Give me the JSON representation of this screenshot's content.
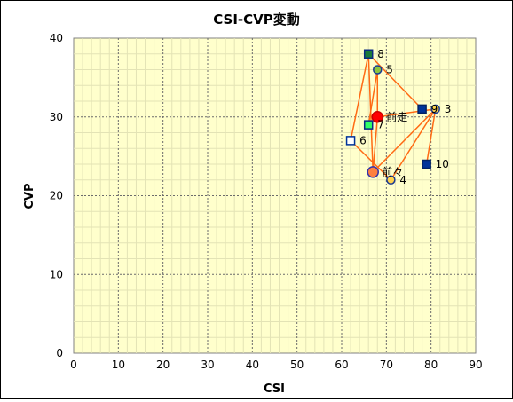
{
  "chart_data": {
    "type": "scatter",
    "title": "CSI-CVP変動",
    "xlabel": "CSI",
    "ylabel": "CVP",
    "xlim": [
      0,
      90
    ],
    "ylim": [
      0,
      40
    ],
    "x_ticks": [
      "0",
      "10",
      "20",
      "30",
      "40",
      "50",
      "60",
      "70",
      "80",
      "90"
    ],
    "y_ticks": [
      "0",
      "10",
      "20",
      "30",
      "40"
    ],
    "grid": true,
    "plot_background": "#ffffcc",
    "line_color": "#ff6a13",
    "points": [
      {
        "label": "8",
        "x": 66,
        "y": 38,
        "marker": "square",
        "fill": "#1a7a3a",
        "stroke": "#0a2a80"
      },
      {
        "label": "5",
        "x": 68,
        "y": 36,
        "marker": "circle",
        "fill": "#8dc63f",
        "stroke": "#1a3a90"
      },
      {
        "label": "3",
        "x": 81,
        "y": 31,
        "marker": "circle",
        "fill": "#ffd24d",
        "stroke": "#1a3a90"
      },
      {
        "label": "9",
        "x": 78,
        "y": 31,
        "marker": "square",
        "fill": "#003399",
        "stroke": "#002266"
      },
      {
        "label": "前走",
        "x": 68,
        "y": 30,
        "marker": "circle-large",
        "fill": "#ff0000",
        "stroke": "#cc0000"
      },
      {
        "label": "7",
        "x": 66,
        "y": 29,
        "marker": "square",
        "fill": "#33ff66",
        "stroke": "#0a2a80"
      },
      {
        "label": "6",
        "x": 62,
        "y": 27,
        "marker": "square",
        "fill": "#ffffff",
        "stroke": "#003399"
      },
      {
        "label": "10",
        "x": 79,
        "y": 24,
        "marker": "square",
        "fill": "#003399",
        "stroke": "#002266"
      },
      {
        "label": "前々",
        "x": 67,
        "y": 23,
        "marker": "circle-large",
        "fill": "#ff8040",
        "stroke": "#3333aa"
      },
      {
        "label": "4",
        "x": 71,
        "y": 22,
        "marker": "circle",
        "fill": "#ffd24d",
        "stroke": "#1a3a90"
      }
    ],
    "connections": [
      [
        "前走",
        "前々"
      ],
      [
        "前走",
        "3"
      ],
      [
        "前走",
        "5"
      ],
      [
        "前走",
        "7"
      ],
      [
        "前々",
        "8"
      ],
      [
        "前々",
        "3"
      ],
      [
        "3",
        "10"
      ],
      [
        "3",
        "4"
      ],
      [
        "8",
        "6"
      ],
      [
        "8",
        "9"
      ],
      [
        "5",
        "7"
      ],
      [
        "6",
        "4"
      ]
    ]
  }
}
